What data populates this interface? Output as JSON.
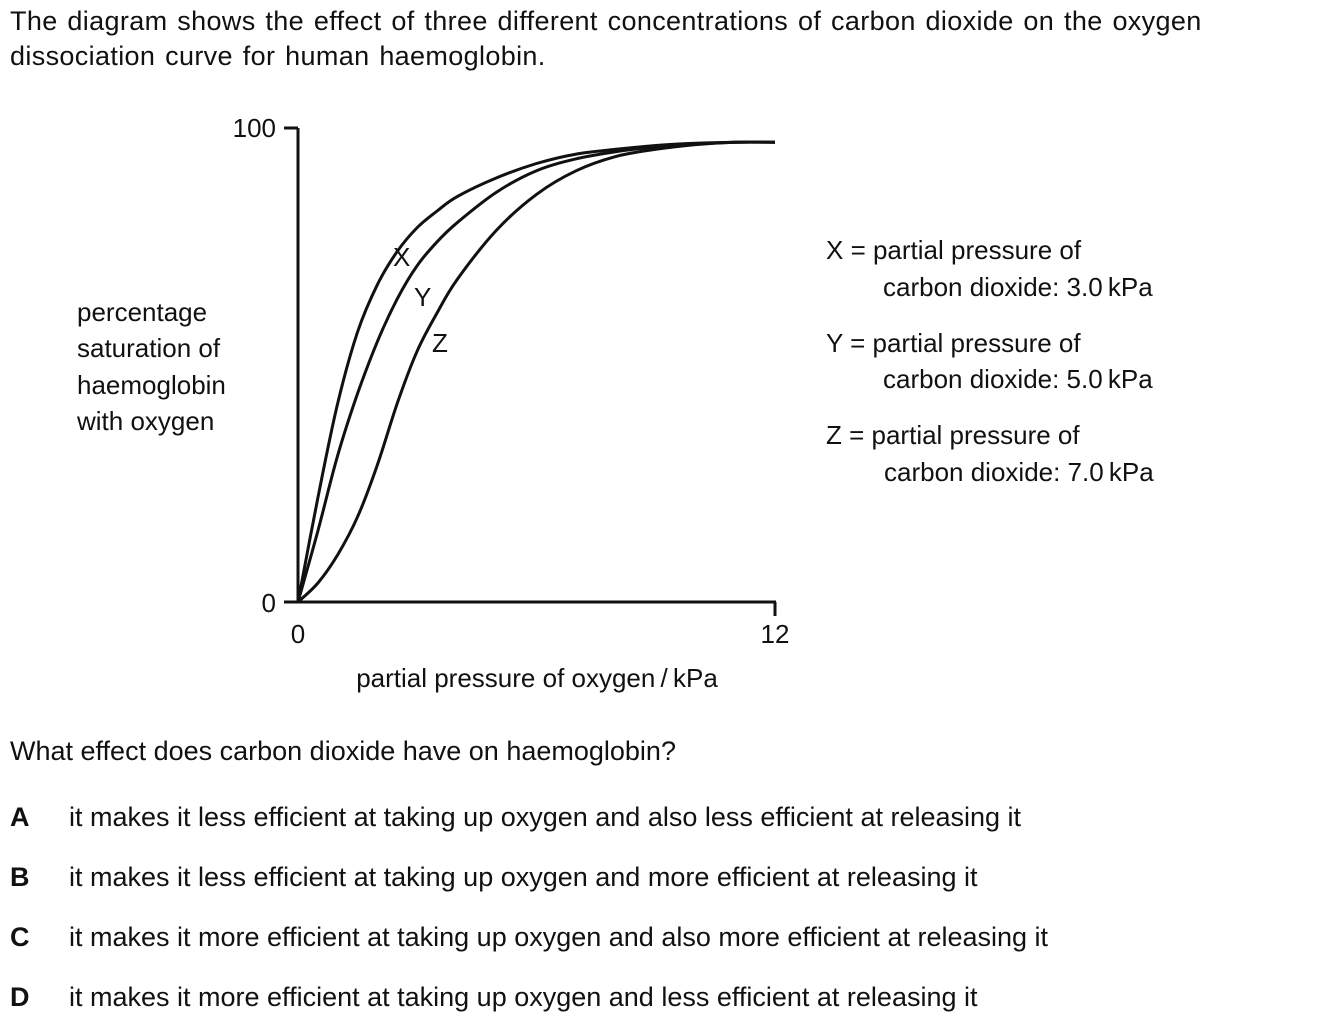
{
  "intro": "The diagram shows the effect of three different concentrations of carbon dioxide on the oxygen dissociation curve for human haemoglobin.",
  "chart_data": {
    "type": "line",
    "ylabel": [
      "percentage",
      "saturation of",
      "haemoglobin",
      "with oxygen"
    ],
    "xlabel": "partial pressure of oxygen / kPa",
    "xlim": [
      0,
      12
    ],
    "ylim": [
      0,
      100
    ],
    "x_ticks": [
      "0",
      "12"
    ],
    "y_ticks": [
      "0",
      "100"
    ],
    "grid": false,
    "series": [
      {
        "name": "X",
        "x": [
          0,
          0.5,
          1,
          1.5,
          2,
          2.5,
          3,
          3.5,
          4,
          5,
          6,
          7,
          8,
          9,
          10,
          11,
          12
        ],
        "y": [
          0,
          22,
          42,
          57,
          67,
          74,
          79,
          82.5,
          85.5,
          89.5,
          92.5,
          94.5,
          95.5,
          96.3,
          96.8,
          97,
          97
        ]
      },
      {
        "name": "Y",
        "x": [
          0,
          0.5,
          1,
          1.5,
          2,
          2.5,
          3,
          3.5,
          4,
          5,
          6,
          7,
          8,
          9,
          10,
          11,
          12
        ],
        "y": [
          0,
          15,
          31,
          44,
          55,
          64,
          71,
          76,
          80,
          86.5,
          91,
          93.5,
          95,
          96,
          96.6,
          97,
          97
        ]
      },
      {
        "name": "Z",
        "x": [
          0,
          0.5,
          1,
          1.5,
          2,
          2.5,
          3,
          3.5,
          4,
          5,
          6,
          7,
          8,
          9,
          10,
          11,
          12
        ],
        "y": [
          0,
          4,
          10,
          18,
          29,
          42,
          53,
          61,
          68,
          78.5,
          86,
          91,
          94,
          95.5,
          96.5,
          97,
          97
        ]
      }
    ],
    "key": [
      {
        "symbol": "X",
        "line1": "X = partial pressure of",
        "line2": "carbon dioxide: 3.0 kPa"
      },
      {
        "symbol": "Y",
        "line1": "Y = partial pressure of",
        "line2": "carbon dioxide: 5.0 kPa"
      },
      {
        "symbol": "Z",
        "line1": "Z = partial pressure of",
        "line2": "carbon dioxide: 7.0 kPa"
      }
    ]
  },
  "question": "What effect does carbon dioxide have on haemoglobin?",
  "options": [
    {
      "letter": "A",
      "text": "it makes it less efficient at taking up oxygen and also less efficient at releasing it"
    },
    {
      "letter": "B",
      "text": "it makes it less efficient at taking up oxygen and more efficient at releasing it"
    },
    {
      "letter": "C",
      "text": "it makes it more efficient at taking up oxygen and also more efficient at releasing it"
    },
    {
      "letter": "D",
      "text": "it makes it more efficient at taking up oxygen and less efficient at releasing it"
    }
  ]
}
